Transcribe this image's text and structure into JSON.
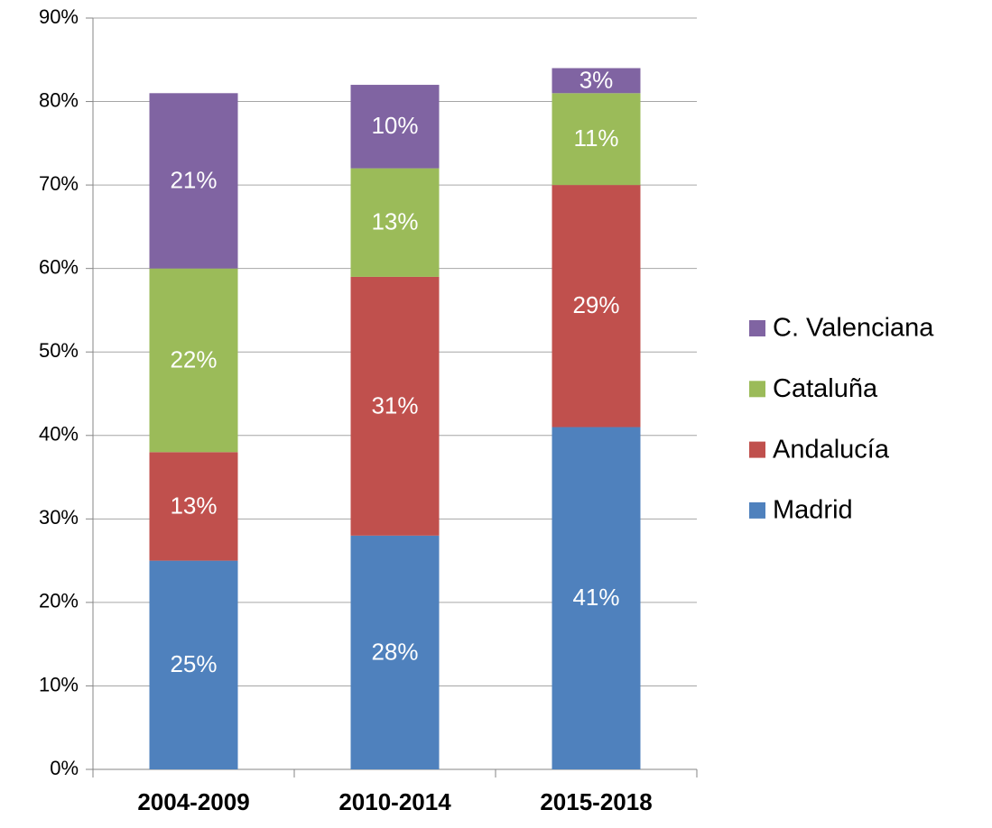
{
  "chart_data": {
    "type": "stacked_bar",
    "categories": [
      "2004-2009",
      "2010-2014",
      "2015-2018"
    ],
    "series": [
      {
        "name": "Madrid",
        "color": "#4f81bd",
        "values": [
          25,
          28,
          41
        ],
        "value_labels": [
          "25%",
          "28%",
          "41%"
        ]
      },
      {
        "name": "Andalucía",
        "color": "#c0504d",
        "values": [
          13,
          31,
          29
        ],
        "value_labels": [
          "13%",
          "31%",
          "29%"
        ]
      },
      {
        "name": "Cataluña",
        "color": "#9bbb59",
        "values": [
          22,
          13,
          11
        ],
        "value_labels": [
          "22%",
          "13%",
          "11%"
        ]
      },
      {
        "name": "C. Valenciana",
        "color": "#8064a2",
        "values": [
          21,
          10,
          3
        ],
        "value_labels": [
          "21%",
          "10%",
          "3%"
        ]
      }
    ],
    "ylim": [
      0,
      90
    ],
    "yticks": [
      {
        "value": 0,
        "label": "0%"
      },
      {
        "value": 10,
        "label": "10%"
      },
      {
        "value": 20,
        "label": "20%"
      },
      {
        "value": 30,
        "label": "30%"
      },
      {
        "value": 40,
        "label": "40%"
      },
      {
        "value": 50,
        "label": "50%"
      },
      {
        "value": 60,
        "label": "60%"
      },
      {
        "value": 70,
        "label": "70%"
      },
      {
        "value": 80,
        "label": "80%"
      },
      {
        "value": 90,
        "label": "90%"
      }
    ],
    "grid": true,
    "legend": "right"
  }
}
